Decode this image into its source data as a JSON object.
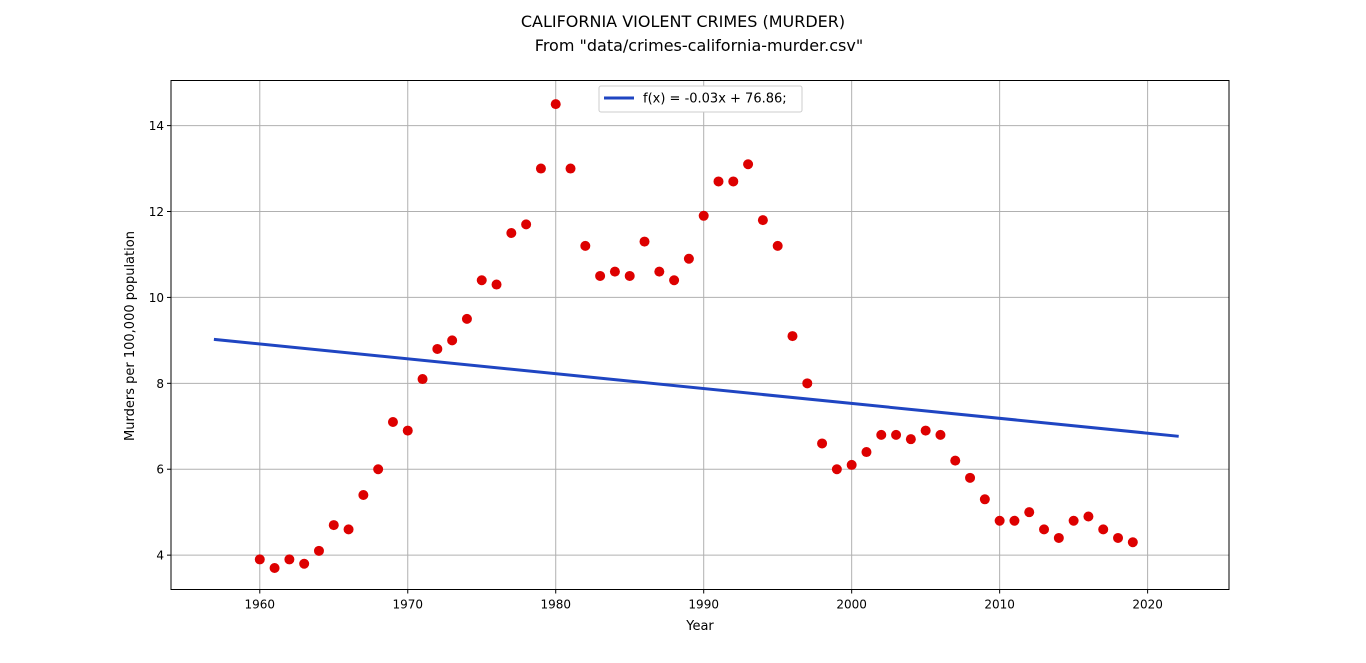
{
  "chart_data": {
    "type": "scatter",
    "title": "CALIFORNIA VIOLENT CRIMES (MURDER)",
    "subtitle": "From \"data/crimes-california-murder.csv\"",
    "xlabel": "Year",
    "ylabel": "Murders per 100,000 population",
    "xlim": [
      1954,
      2025.5
    ],
    "ylim": [
      3.2,
      15.05
    ],
    "xticks": [
      1960,
      1970,
      1980,
      1990,
      2000,
      2010,
      2020
    ],
    "yticks": [
      4,
      6,
      8,
      10,
      12,
      14
    ],
    "grid": true,
    "legend_position": "top-center",
    "series": [
      {
        "type": "scatter",
        "color": "#dd0000",
        "x": [
          1960,
          1961,
          1962,
          1963,
          1964,
          1965,
          1966,
          1967,
          1968,
          1969,
          1970,
          1971,
          1972,
          1973,
          1974,
          1975,
          1976,
          1977,
          1978,
          1979,
          1980,
          1981,
          1982,
          1983,
          1984,
          1985,
          1986,
          1987,
          1988,
          1989,
          1990,
          1991,
          1992,
          1993,
          1994,
          1995,
          1996,
          1997,
          1998,
          1999,
          2000,
          2001,
          2002,
          2003,
          2004,
          2005,
          2006,
          2007,
          2008,
          2009,
          2010,
          2011,
          2012,
          2013,
          2014,
          2015,
          2016,
          2017,
          2018,
          2019
        ],
        "y": [
          3.9,
          3.7,
          3.9,
          3.8,
          4.1,
          4.7,
          4.6,
          5.4,
          6.0,
          7.1,
          6.9,
          8.1,
          8.8,
          9.0,
          9.5,
          10.4,
          10.3,
          11.5,
          11.7,
          13.0,
          14.5,
          13.0,
          11.2,
          10.5,
          10.6,
          10.5,
          11.3,
          10.6,
          10.4,
          10.9,
          11.9,
          12.7,
          12.7,
          13.1,
          11.8,
          11.2,
          9.1,
          8.0,
          6.6,
          6.0,
          6.1,
          6.4,
          6.8,
          6.8,
          6.7,
          6.9,
          6.8,
          6.2,
          5.8,
          5.3,
          4.8,
          4.8,
          5.0,
          4.6,
          4.4,
          4.8,
          4.9,
          4.6,
          4.4,
          4.3
        ]
      },
      {
        "type": "line",
        "name": "f(x) = -0.03x + 76.86;",
        "color": "#1f45c2",
        "x": [
          1957,
          2022
        ],
        "y": [
          9.02,
          6.77
        ]
      }
    ]
  }
}
